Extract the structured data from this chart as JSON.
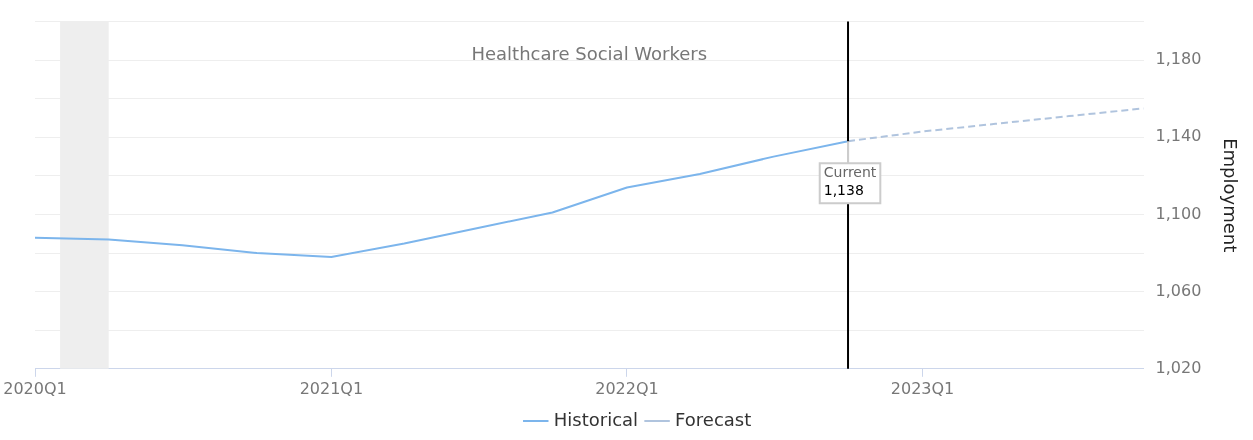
{
  "chart_data": {
    "type": "line",
    "title": "Healthcare Social Workers",
    "ylabel": "Employment",
    "xlim": [
      "2020-01",
      "2023-10"
    ],
    "xticks": [
      {
        "value": "2020-01",
        "label": "2020Q1"
      },
      {
        "value": "2021-01",
        "label": "2021Q1"
      },
      {
        "value": "2022-01",
        "label": "2022Q1"
      },
      {
        "value": "2023-01",
        "label": "2023Q1"
      }
    ],
    "ylim": [
      1020,
      1200
    ],
    "yticks": [
      {
        "value": 1020,
        "label": "1,020"
      },
      {
        "value": 1040,
        "label": null
      },
      {
        "value": 1060,
        "label": "1,060"
      },
      {
        "value": 1080,
        "label": null
      },
      {
        "value": 1100,
        "label": "1,100"
      },
      {
        "value": 1120,
        "label": null
      },
      {
        "value": 1140,
        "label": "1,140"
      },
      {
        "value": 1160,
        "label": null
      },
      {
        "value": 1180,
        "label": "1,180"
      },
      {
        "value": 1200,
        "label": null
      }
    ],
    "series": [
      {
        "name": "Historical",
        "color": "#7cb5ec",
        "line_style": "solid",
        "x": [
          "2020-01",
          "2020-04",
          "2020-07",
          "2020-10",
          "2021-01",
          "2021-04",
          "2021-07",
          "2021-10",
          "2022-01",
          "2022-04",
          "2022-07",
          "2022-10"
        ],
        "values": [
          1088,
          1087,
          1084,
          1080,
          1078,
          1085,
          1093,
          1101,
          1114,
          1121,
          1130,
          1138
        ],
        "value_labels": [
          null,
          null,
          null,
          null,
          null,
          null,
          null,
          null,
          null,
          null,
          null,
          "1,138"
        ]
      },
      {
        "name": "Forecast",
        "color": "#b0c4de",
        "line_style": "dashed",
        "x": [
          "2022-10",
          "2023-01",
          "2023-04",
          "2023-07",
          "2023-10"
        ],
        "values": [
          1138,
          1143,
          1147,
          1151,
          1155
        ]
      }
    ],
    "bands": [
      {
        "axis": "x",
        "from": "2020-02",
        "to": "2020-04",
        "color": "#eeeeee"
      }
    ],
    "ref_lines": [
      {
        "axis": "x",
        "value": "2022-10",
        "color": "#000000"
      }
    ],
    "annotations": [
      {
        "text": "Current",
        "x": "2022-10",
        "y": 1138
      }
    ],
    "grid": "y",
    "legend": "bottom",
    "marker": "none"
  }
}
